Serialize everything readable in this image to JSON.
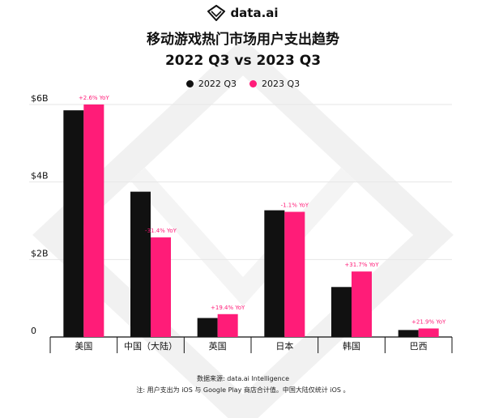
{
  "brand": {
    "name": "data.ai"
  },
  "header": {
    "title": "移动游戏热门市场用户支出趋势",
    "subtitle": "2022 Q3 vs 2023 Q3"
  },
  "footer": {
    "source": "数据来源: data.ai Intelligence",
    "note": "注: 用户支出为 iOS 与 Google Play 商店合计值。中国大陆仅统计 iOS 。"
  },
  "colors": {
    "series_2022": "#111111",
    "series_2023": "#ff1c78",
    "grid": "#e6e6e6"
  },
  "chart_data": {
    "type": "bar",
    "title": "移动游戏热门市场用户支出趋势",
    "subtitle": "2022 Q3 vs 2023 Q3",
    "categories": [
      "美国",
      "中国（大陆）",
      "英国",
      "日本",
      "韩国",
      "巴西"
    ],
    "series": [
      {
        "name": "2022 Q3",
        "values": [
          5.85,
          3.75,
          0.49,
          3.27,
          1.29,
          0.18
        ]
      },
      {
        "name": "2023 Q3",
        "values": [
          6.0,
          2.57,
          0.59,
          3.23,
          1.69,
          0.22
        ]
      }
    ],
    "annotations": [
      "+2.6% YoY",
      "-31.4% YoY",
      "+19.4% YoY",
      "-1.1% YoY",
      "+31.7% YoY",
      "+21.9% YoY"
    ],
    "y_ticks": [
      {
        "value": 0,
        "label": "0"
      },
      {
        "value": 2,
        "label": "$2B"
      },
      {
        "value": 4,
        "label": "$4B"
      },
      {
        "value": 6,
        "label": "$6B"
      }
    ],
    "ylim": [
      0,
      6
    ],
    "legend": "top-center",
    "grid": true
  }
}
